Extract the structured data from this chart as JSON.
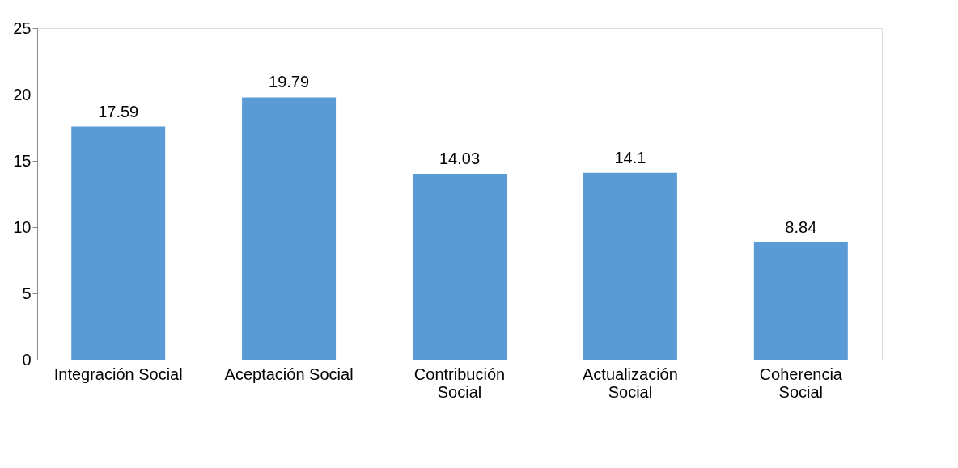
{
  "chart_data": {
    "type": "bar",
    "categories": [
      "Integración Social",
      "Aceptación Social",
      "Contribución Social",
      "Actualización Social",
      "Coherencia Social"
    ],
    "values": [
      17.59,
      19.79,
      14.03,
      14.1,
      8.84
    ],
    "color": "#5b9bd5",
    "ylim": [
      0,
      25
    ],
    "yticks": [
      0,
      5,
      10,
      15,
      20,
      25
    ],
    "grid": false,
    "data_labels": true
  }
}
